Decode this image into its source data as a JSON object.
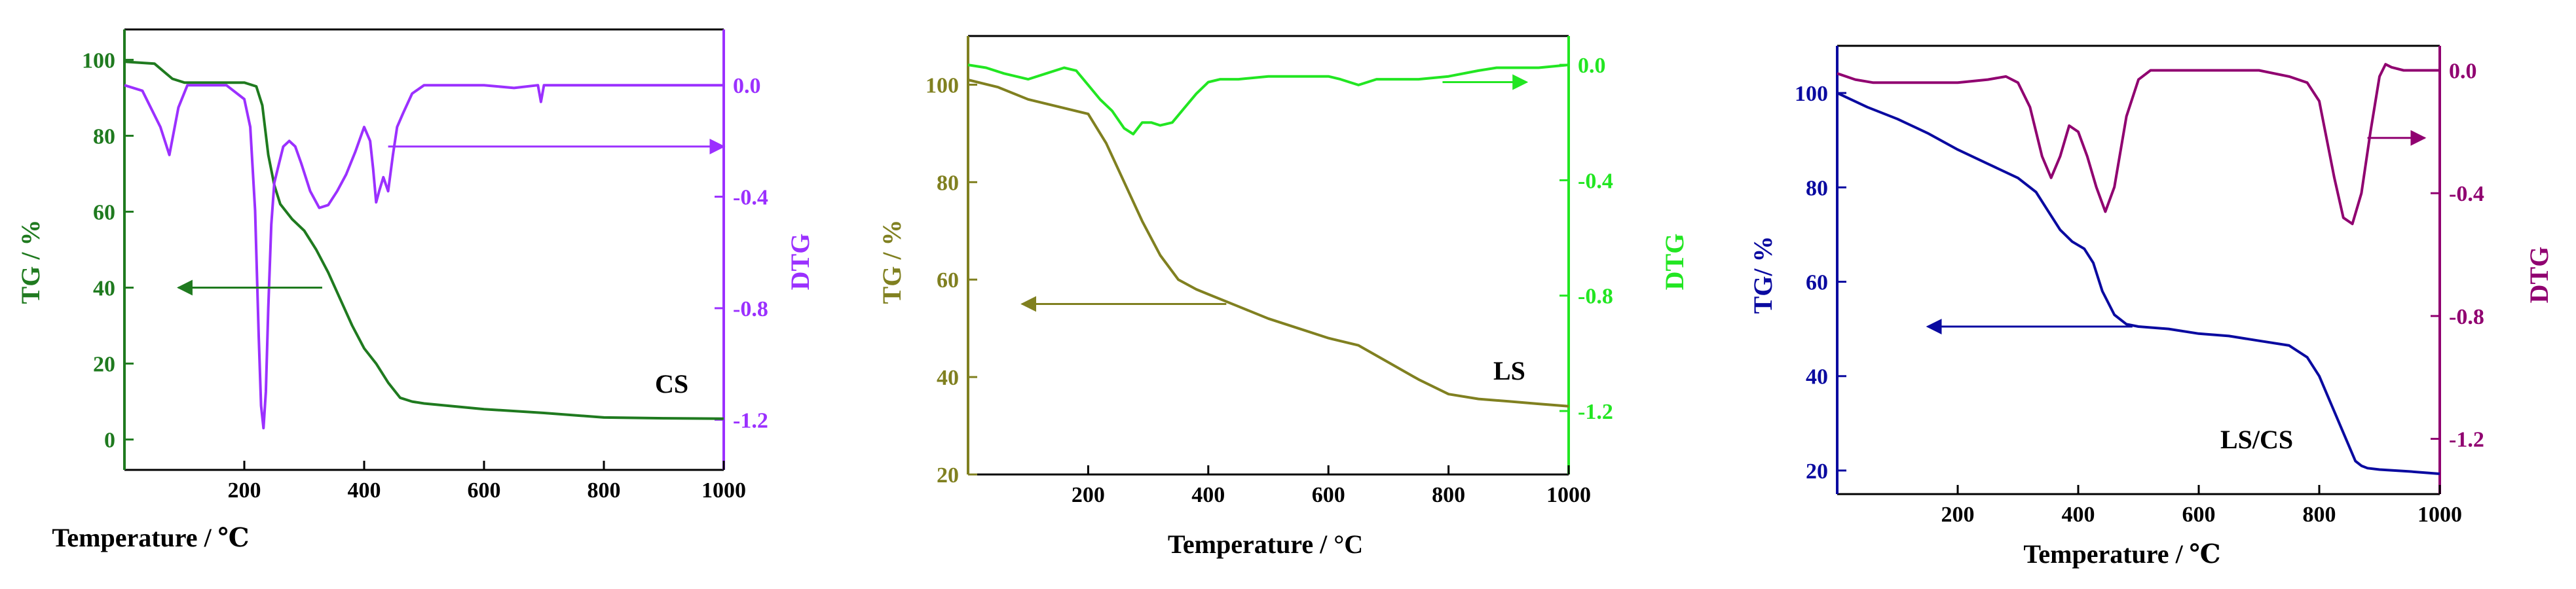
{
  "chart_data": [
    {
      "type": "line",
      "title": "",
      "sample_label": "CS",
      "xlabel": "Temperature  /  ℃",
      "ylabel_left": "TG / %",
      "ylabel_right": "DTG",
      "xlim": [
        0,
        1000
      ],
      "ylim_left": [
        -8,
        108
      ],
      "ylim_right": [
        -1.38,
        0.2
      ],
      "x_ticks": [
        200,
        400,
        600,
        800,
        1000
      ],
      "x_tick_labels": [
        "200",
        "400",
        "600",
        "800",
        "1000"
      ],
      "left_ticks": [
        0,
        20,
        40,
        60,
        80,
        100
      ],
      "left_tick_labels": [
        "0",
        "20",
        "40",
        "60",
        "80",
        "100"
      ],
      "right_ticks": [
        0.0,
        -0.4,
        -0.8,
        -1.2
      ],
      "right_tick_labels": [
        "0.0",
        "-0.4",
        "-0.8",
        "-1.2"
      ],
      "colors": {
        "tg": "#1f7a1f",
        "dtg": "#9b30ff",
        "frame_left": "#1f7a1f",
        "frame_right": "#9b30ff",
        "frame": "#000000"
      },
      "arrows": [
        {
          "series": "tg",
          "from": [
            330,
            40
          ],
          "to": [
            90,
            40
          ],
          "axis": "left"
        },
        {
          "series": "dtg",
          "from": [
            440,
            -0.22
          ],
          "to": [
            1000,
            -0.22
          ],
          "axis": "right"
        }
      ],
      "series": [
        {
          "name": "TG",
          "axis": "left",
          "color_key": "tg",
          "x": [
            0,
            50,
            80,
            100,
            150,
            200,
            220,
            230,
            240,
            250,
            260,
            280,
            300,
            320,
            340,
            360,
            380,
            400,
            420,
            440,
            460,
            480,
            500,
            600,
            700,
            800,
            900,
            1000
          ],
          "y": [
            99.5,
            99,
            95,
            94,
            94,
            94,
            93,
            88,
            75,
            67,
            62,
            58,
            55,
            50,
            44,
            37,
            30,
            24,
            20,
            15,
            11,
            10,
            9.5,
            8,
            7,
            5.8,
            5.6,
            5.5
          ]
        },
        {
          "name": "DTG",
          "axis": "right",
          "color_key": "dtg",
          "x": [
            0,
            30,
            60,
            75,
            90,
            105,
            120,
            140,
            170,
            200,
            210,
            218,
            224,
            228,
            232,
            236,
            240,
            245,
            250,
            258,
            265,
            275,
            285,
            295,
            310,
            325,
            340,
            355,
            370,
            385,
            400,
            410,
            415,
            420,
            425,
            432,
            440,
            448,
            455,
            465,
            480,
            500,
            550,
            600,
            650,
            690,
            695,
            700,
            705,
            750,
            800,
            820,
            1000
          ],
          "y": [
            0.0,
            -0.02,
            -0.15,
            -0.25,
            -0.08,
            0.0,
            0.0,
            0.0,
            0.0,
            -0.05,
            -0.15,
            -0.45,
            -0.9,
            -1.15,
            -1.23,
            -1.1,
            -0.8,
            -0.5,
            -0.35,
            -0.28,
            -0.22,
            -0.2,
            -0.22,
            -0.28,
            -0.38,
            -0.44,
            -0.43,
            -0.38,
            -0.32,
            -0.24,
            -0.15,
            -0.2,
            -0.3,
            -0.42,
            -0.38,
            -0.33,
            -0.38,
            -0.25,
            -0.15,
            -0.1,
            -0.03,
            0.0,
            0.0,
            0.0,
            -0.01,
            0.0,
            -0.06,
            0.0,
            0.0,
            0.0,
            0.0,
            0.0,
            0.0
          ]
        }
      ]
    },
    {
      "type": "line",
      "title": "",
      "sample_label": "LS",
      "xlabel": "Temperature  /  °C",
      "ylabel_left": "TG / %",
      "ylabel_right": "DTG",
      "xlim": [
        0,
        1000
      ],
      "ylim_left": [
        20,
        110
      ],
      "ylim_right": [
        -1.42,
        0.1
      ],
      "x_ticks": [
        200,
        400,
        600,
        800,
        1000
      ],
      "x_tick_labels": [
        "200",
        "400",
        "600",
        "800",
        "1000"
      ],
      "left_ticks": [
        20,
        40,
        60,
        80,
        100
      ],
      "left_tick_labels": [
        "20",
        "40",
        "60",
        "80",
        "100"
      ],
      "right_ticks": [
        0.0,
        -0.4,
        -0.8,
        -1.2
      ],
      "right_tick_labels": [
        "0.0",
        "-0.4",
        "-0.8",
        "-1.2"
      ],
      "colors": {
        "tg": "#808020",
        "dtg": "#22e622",
        "frame_left": "#808020",
        "frame_right": "#22e622",
        "frame": "#000000"
      },
      "arrows": [
        {
          "series": "tg",
          "from": [
            430,
            55
          ],
          "to": [
            90,
            55
          ],
          "axis": "left"
        },
        {
          "series": "dtg",
          "from": [
            790,
            -0.06
          ],
          "to": [
            930,
            -0.06
          ],
          "axis": "right"
        }
      ],
      "series": [
        {
          "name": "TG",
          "axis": "left",
          "color_key": "tg",
          "x": [
            0,
            50,
            100,
            150,
            200,
            230,
            260,
            290,
            320,
            350,
            380,
            400,
            450,
            500,
            550,
            600,
            650,
            700,
            750,
            800,
            850,
            900,
            950,
            1000
          ],
          "y": [
            101,
            99.5,
            97,
            95.5,
            94,
            88,
            80,
            72,
            65,
            60,
            58,
            57,
            54.5,
            52,
            50,
            48,
            46.5,
            43,
            39.5,
            36.5,
            35.5,
            35,
            34.5,
            34
          ]
        },
        {
          "name": "DTG",
          "axis": "right",
          "color_key": "dtg",
          "x": [
            0,
            30,
            60,
            100,
            130,
            160,
            180,
            200,
            220,
            240,
            260,
            275,
            290,
            305,
            320,
            340,
            360,
            380,
            400,
            420,
            450,
            500,
            550,
            600,
            620,
            650,
            680,
            700,
            750,
            800,
            850,
            880,
            900,
            950,
            1000
          ],
          "y": [
            0.0,
            -0.01,
            -0.03,
            -0.05,
            -0.03,
            -0.01,
            -0.02,
            -0.07,
            -0.12,
            -0.16,
            -0.22,
            -0.24,
            -0.2,
            -0.2,
            -0.21,
            -0.2,
            -0.15,
            -0.1,
            -0.06,
            -0.05,
            -0.05,
            -0.04,
            -0.04,
            -0.04,
            -0.05,
            -0.07,
            -0.05,
            -0.05,
            -0.05,
            -0.04,
            -0.02,
            -0.01,
            -0.01,
            -0.01,
            0.0
          ]
        }
      ]
    },
    {
      "type": "line",
      "title": "",
      "sample_label": "LS/CS",
      "xlabel": "Temperature  /  ℃",
      "ylabel_left": "TG/ %",
      "ylabel_right": "DTG",
      "xlim": [
        0,
        1000
      ],
      "ylim_left": [
        15,
        110
      ],
      "ylim_right": [
        -1.38,
        0.08
      ],
      "x_ticks": [
        200,
        400,
        600,
        800,
        1000
      ],
      "x_tick_labels": [
        "200",
        "400",
        "600",
        "800",
        "1000"
      ],
      "left_ticks": [
        20,
        40,
        60,
        80,
        100
      ],
      "left_tick_labels": [
        "20",
        "40",
        "60",
        "80",
        "100"
      ],
      "right_ticks": [
        0.0,
        -0.4,
        -0.8,
        -1.2
      ],
      "right_tick_labels": [
        "0.0",
        "-0.4",
        "-0.8",
        "-1.2"
      ],
      "colors": {
        "tg": "#0a0aa0",
        "dtg": "#900070",
        "frame_left": "#0a0aa0",
        "frame_right": "#900070",
        "frame": "#000000"
      },
      "arrows": [
        {
          "series": "tg",
          "from": [
            490,
            50.5
          ],
          "to": [
            150,
            50.5
          ],
          "axis": "left"
        },
        {
          "series": "dtg",
          "from": [
            880,
            -0.22
          ],
          "to": [
            975,
            -0.22
          ],
          "axis": "right"
        }
      ],
      "series": [
        {
          "name": "TG",
          "axis": "left",
          "color_key": "tg",
          "x": [
            0,
            50,
            100,
            150,
            200,
            250,
            300,
            330,
            350,
            370,
            390,
            410,
            425,
            440,
            460,
            480,
            500,
            550,
            600,
            650,
            700,
            750,
            780,
            800,
            820,
            840,
            860,
            870,
            880,
            900,
            950,
            1000
          ],
          "y": [
            100,
            97,
            94.5,
            91.5,
            88,
            85,
            82,
            79,
            75,
            71,
            68.5,
            67,
            64,
            58,
            53,
            51,
            50.5,
            50,
            49,
            48.5,
            47.5,
            46.5,
            44,
            40,
            34,
            28,
            22,
            21,
            20.5,
            20.2,
            19.8,
            19.3
          ]
        },
        {
          "name": "DTG",
          "axis": "right",
          "color_key": "dtg",
          "x": [
            0,
            30,
            60,
            100,
            150,
            200,
            250,
            280,
            300,
            320,
            340,
            355,
            370,
            385,
            400,
            415,
            430,
            445,
            460,
            480,
            500,
            520,
            550,
            600,
            650,
            700,
            750,
            780,
            800,
            810,
            825,
            840,
            855,
            870,
            885,
            900,
            910,
            920,
            940,
            1000
          ],
          "y": [
            -0.01,
            -0.03,
            -0.04,
            -0.04,
            -0.04,
            -0.04,
            -0.03,
            -0.02,
            -0.04,
            -0.12,
            -0.28,
            -0.35,
            -0.28,
            -0.18,
            -0.2,
            -0.28,
            -0.38,
            -0.46,
            -0.38,
            -0.15,
            -0.03,
            0.0,
            0.0,
            0.0,
            0.0,
            0.0,
            -0.02,
            -0.04,
            -0.1,
            -0.2,
            -0.35,
            -0.48,
            -0.5,
            -0.4,
            -0.2,
            -0.02,
            0.02,
            0.01,
            0.0,
            0.0
          ]
        }
      ]
    }
  ]
}
